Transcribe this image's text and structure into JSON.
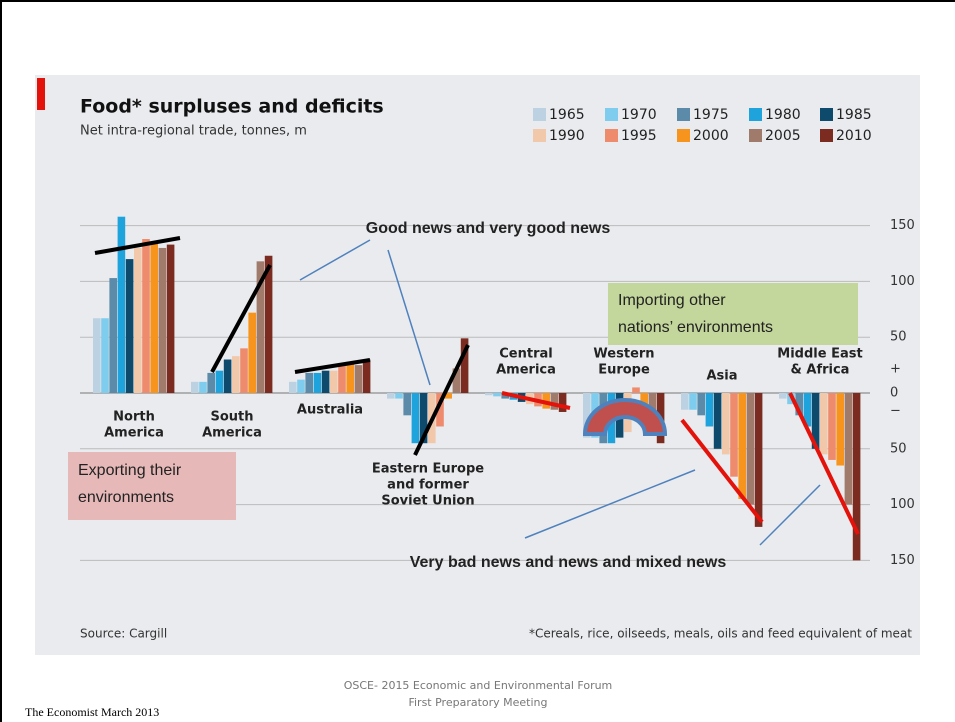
{
  "chart_data": {
    "type": "bar",
    "title": "Food* surpluses and deficits",
    "subtitle": "Net intra-regional trade, tonnes, m",
    "source": "Source: Cargill",
    "footnote": "*Cereals, rice, oilseeds, meals, oils and feed equivalent of meat",
    "categories": [
      [
        "North",
        "America"
      ],
      [
        "South",
        "America"
      ],
      [
        "Australia"
      ],
      [
        "Eastern Europe",
        "and former",
        "Soviet Union"
      ],
      [
        "Central",
        "America"
      ],
      [
        "Western",
        "Europe"
      ],
      [
        "Asia"
      ],
      [
        "Middle East",
        "& Africa"
      ]
    ],
    "series": [
      {
        "name": "1965",
        "color": "#bcd2e3",
        "values": [
          67,
          10,
          10,
          -5,
          -2,
          -40,
          -15,
          -5
        ]
      },
      {
        "name": "1970",
        "color": "#7fcdee",
        "values": [
          67,
          10,
          12,
          -5,
          -3,
          -40,
          -15,
          -10
        ]
      },
      {
        "name": "1975",
        "color": "#5b8ba8",
        "values": [
          103,
          18,
          18,
          -20,
          -5,
          -45,
          -20,
          -20
        ]
      },
      {
        "name": "1980",
        "color": "#1fa3dc",
        "values": [
          158,
          20,
          18,
          -45,
          -6,
          -45,
          -30,
          -30
        ]
      },
      {
        "name": "1985",
        "color": "#0e4a6b",
        "values": [
          120,
          30,
          20,
          -45,
          -8,
          -40,
          -50,
          -50
        ]
      },
      {
        "name": "1990",
        "color": "#f2c8aa",
        "values": [
          130,
          33,
          20,
          -45,
          -10,
          -35,
          -55,
          -55
        ]
      },
      {
        "name": "1995",
        "color": "#ee8b6c",
        "values": [
          138,
          40,
          25,
          -30,
          -12,
          5,
          -75,
          -60
        ]
      },
      {
        "name": "2000",
        "color": "#f7941d",
        "values": [
          135,
          72,
          28,
          -5,
          -14,
          -30,
          -95,
          -65
        ]
      },
      {
        "name": "2005",
        "color": "#a07a6b",
        "values": [
          130,
          118,
          25,
          22,
          -15,
          -35,
          -100,
          -100
        ]
      },
      {
        "name": "2010",
        "color": "#7b2b20",
        "values": [
          133,
          123,
          30,
          49,
          -17,
          -45,
          -120,
          -150
        ]
      }
    ],
    "ylim": [
      -190,
      190
    ],
    "yticks": [
      150,
      100,
      50,
      0,
      {
        "value": -50,
        "label": "50"
      },
      {
        "value": -100,
        "label": "100"
      },
      {
        "value": -150,
        "label": "150"
      }
    ],
    "axis_signs": [
      "+",
      "−"
    ],
    "grid": true,
    "annotations": [
      [
        "Good news and very good news"
      ],
      [
        "Importing other",
        "nations’ environments"
      ],
      [
        "Exporting their",
        "environments"
      ],
      [
        "Very bad news and news and mixed news"
      ]
    ]
  },
  "footer": {
    "line1": "OSCE- 2015  Economic and Environmental Forum",
    "line2": "First Preparatory Meeting",
    "credit": "The Economist March 2013"
  }
}
